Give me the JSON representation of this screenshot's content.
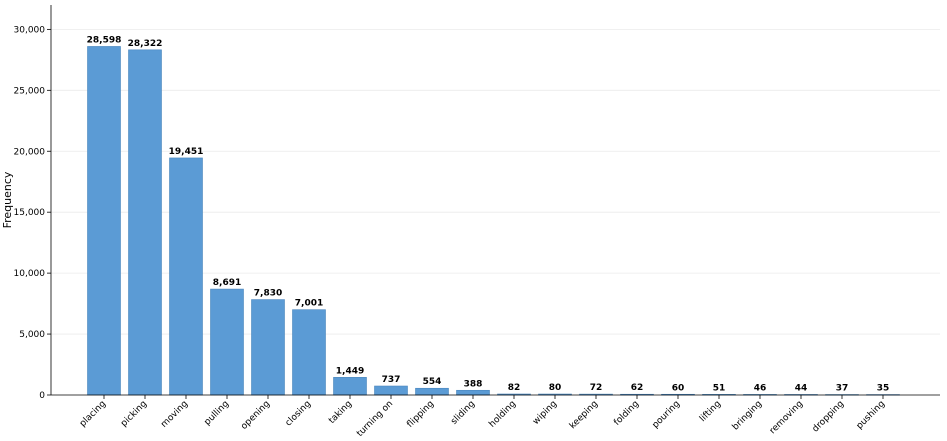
{
  "chart_data": {
    "type": "bar",
    "categories": [
      "placing",
      "picking",
      "moving",
      "pulling",
      "opening",
      "closing",
      "taking",
      "turning on",
      "flipping",
      "sliding",
      "holding",
      "wiping",
      "keeping",
      "folding",
      "pouring",
      "lifting",
      "bringing",
      "removing",
      "dropping",
      "pushing"
    ],
    "values": [
      28598,
      28322,
      19451,
      8691,
      7830,
      7001,
      1449,
      737,
      554,
      388,
      82,
      80,
      72,
      62,
      60,
      51,
      46,
      44,
      37,
      35
    ],
    "value_labels": [
      "28,598",
      "28,322",
      "19,451",
      "8,691",
      "7,830",
      "7,001",
      "1,449",
      "737",
      "554",
      "388",
      "82",
      "80",
      "72",
      "62",
      "60",
      "51",
      "46",
      "44",
      "37",
      "35"
    ],
    "title": "",
    "xlabel": "",
    "ylabel": "Frequency",
    "ylim": [
      0,
      32000
    ],
    "yticks": [
      0,
      5000,
      10000,
      15000,
      20000,
      25000,
      30000
    ],
    "ytick_labels": [
      "0",
      "5,000",
      "10,000",
      "15,000",
      "20,000",
      "25,000",
      "30,000"
    ],
    "grid": "horizontal",
    "bar_color": "#5b9bd5"
  }
}
